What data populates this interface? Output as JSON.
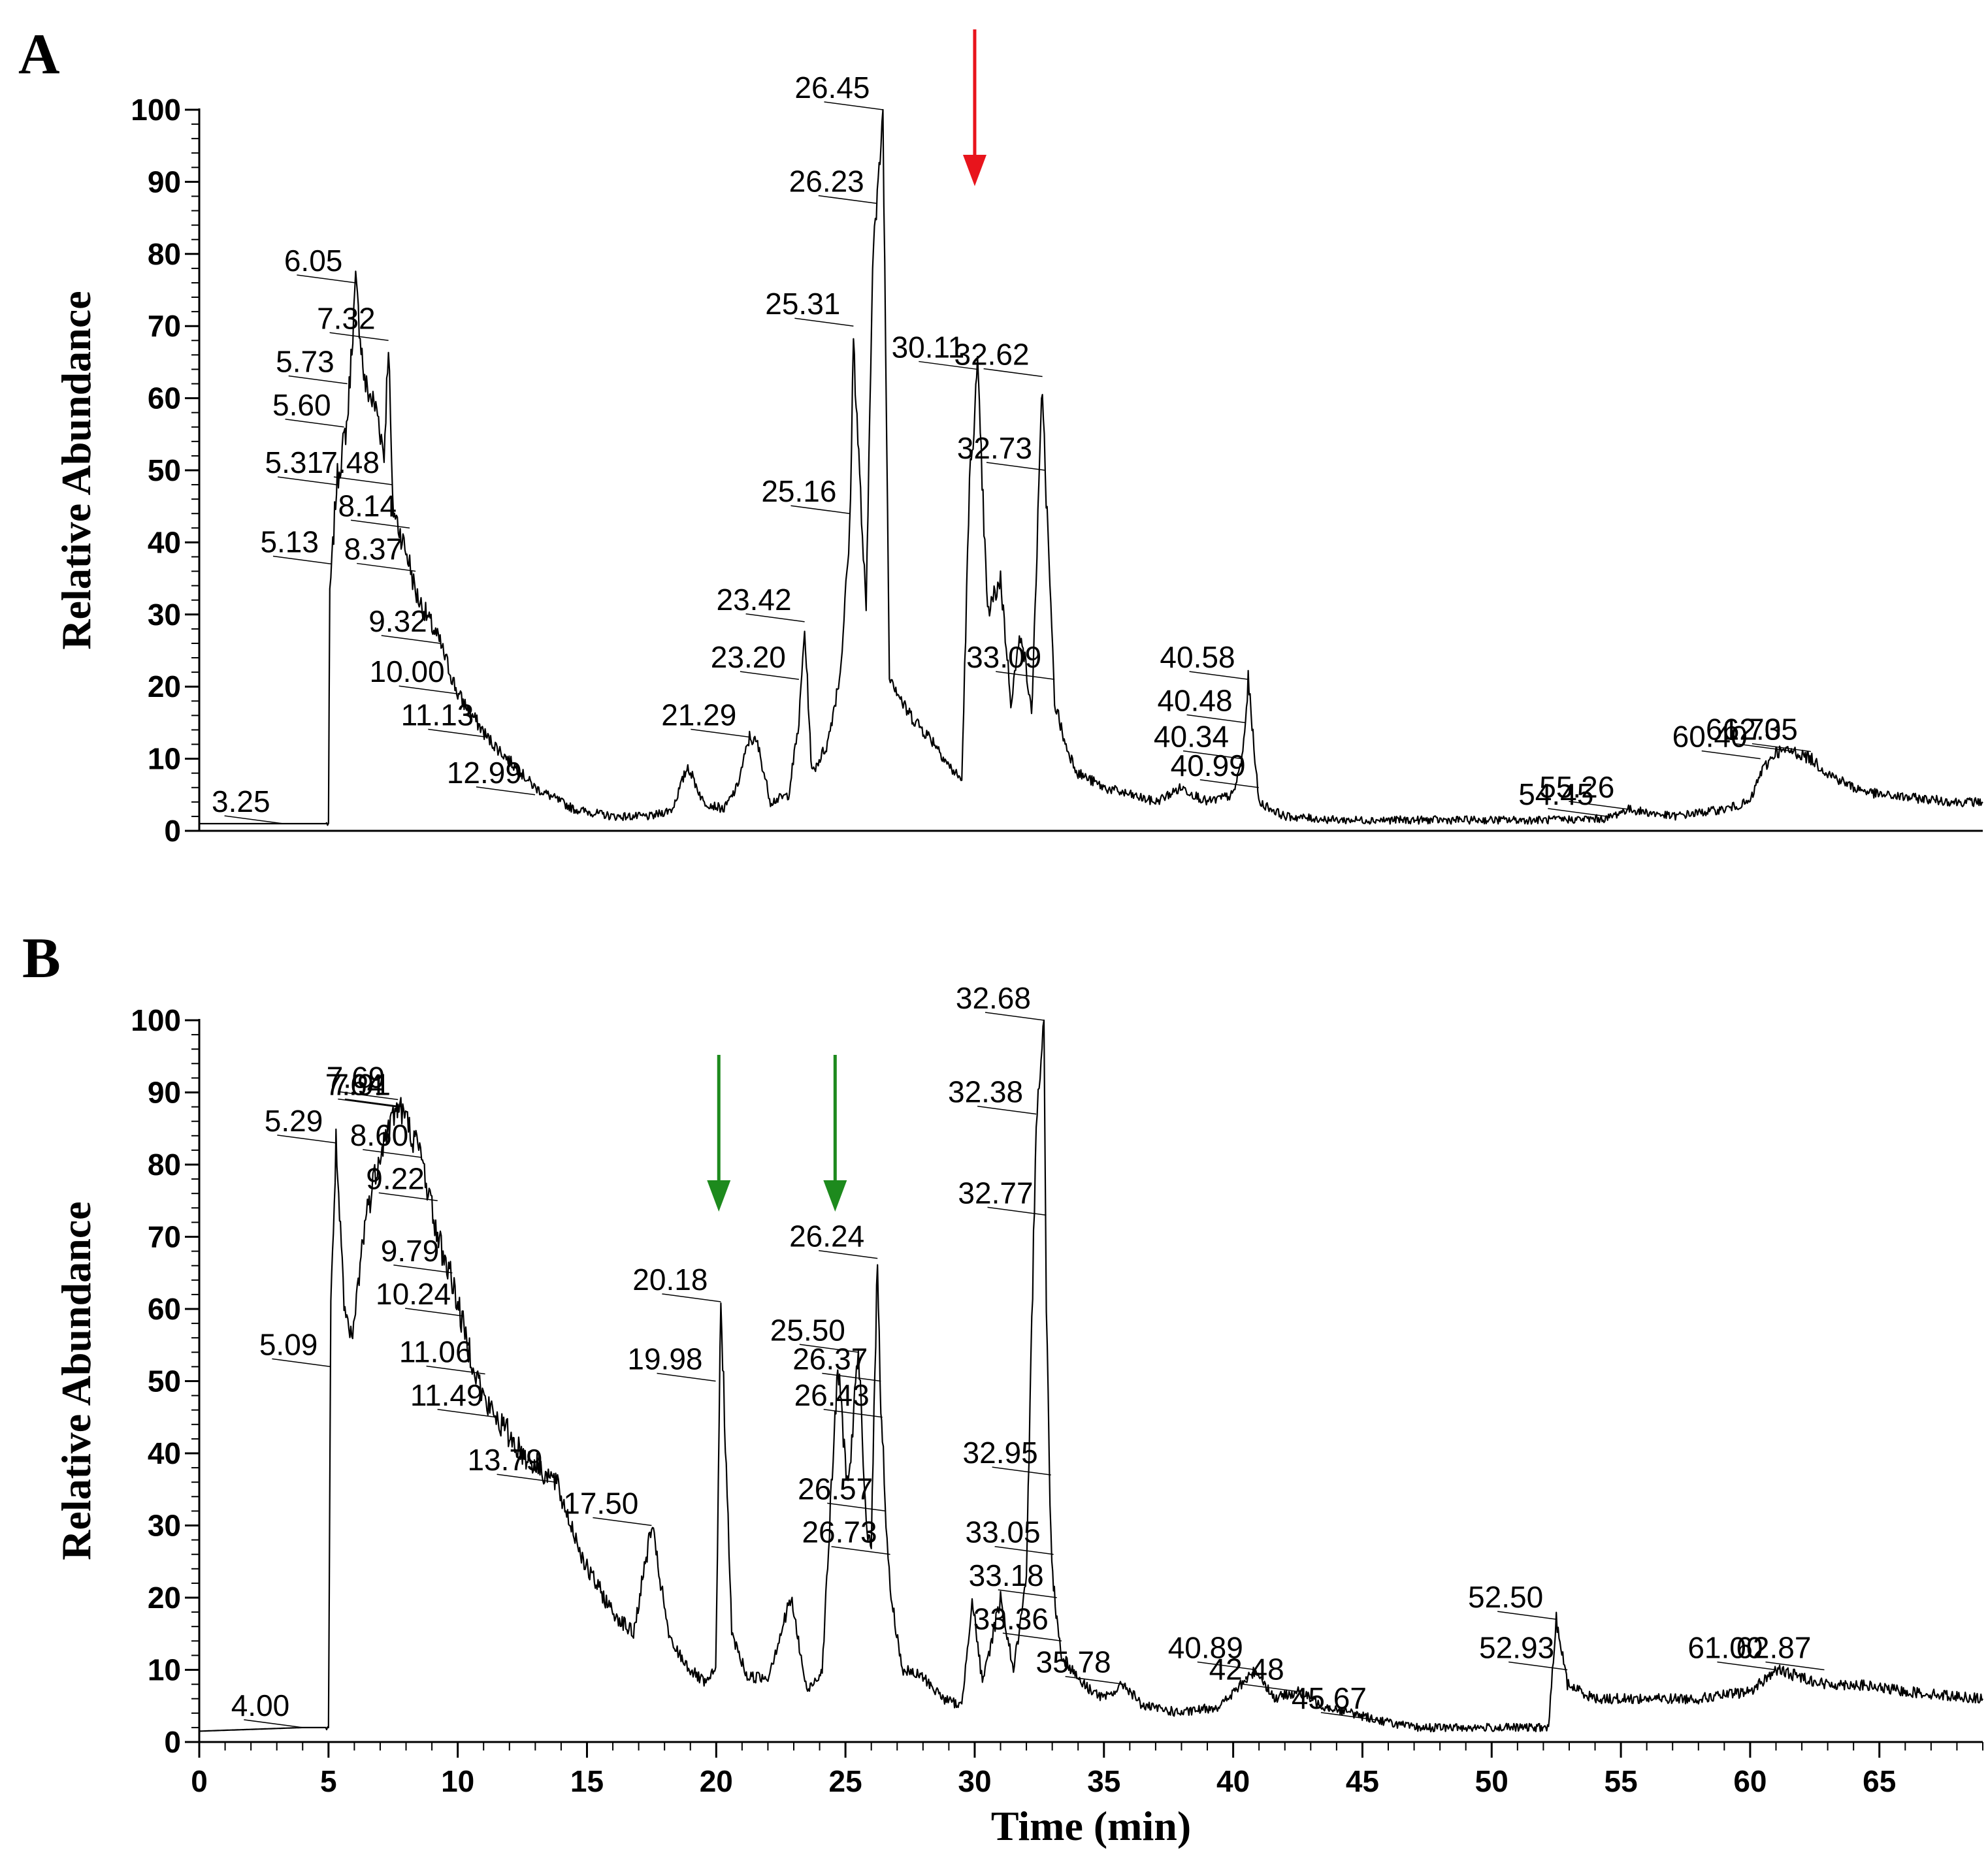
{
  "colors": {
    "trace": "#000000",
    "axis": "#000000",
    "arrow_red": "#e8141c",
    "arrow_green": "#1d8a1d"
  },
  "chart_data": [
    {
      "type": "line",
      "panel": "A",
      "xlabel": "",
      "ylabel": "Relative Abundance",
      "xlim": [
        0,
        69
      ],
      "ylim": [
        0,
        100
      ],
      "yticks": [
        0,
        10,
        20,
        30,
        40,
        50,
        60,
        70,
        80,
        90,
        100
      ],
      "xticks": [],
      "series": [
        {
          "name": "A",
          "x": [
            0,
            3.25,
            5.0,
            5.05,
            5.13,
            5.31,
            5.6,
            5.73,
            6.05,
            6.4,
            6.9,
            7.15,
            7.32,
            7.48,
            8.14,
            8.37,
            9.32,
            10.0,
            11.13,
            12.99,
            14.5,
            16.0,
            17.5,
            18.3,
            18.9,
            19.5,
            20.3,
            20.8,
            21.29,
            21.6,
            22.1,
            22.8,
            23.2,
            23.42,
            23.7,
            24.3,
            24.8,
            25.16,
            25.31,
            25.55,
            25.8,
            26.05,
            26.23,
            26.45,
            26.7,
            27.3,
            28.0,
            28.5,
            29.0,
            29.5,
            29.8,
            30.11,
            30.5,
            31.0,
            31.4,
            31.8,
            32.2,
            32.62,
            32.73,
            33.09,
            33.5,
            34.0,
            35.0,
            36.0,
            37.0,
            38.0,
            39.0,
            40.0,
            40.34,
            40.48,
            40.58,
            40.99,
            42.0,
            44.0,
            46.0,
            48.0,
            50.0,
            52.0,
            54.45,
            55.26,
            57.0,
            59.0,
            60.0,
            60.4,
            61.0,
            61.7,
            62.35,
            63.0,
            64.0,
            65.0,
            66.5,
            68.0,
            69.0
          ],
          "y": [
            1,
            1,
            1,
            33,
            37,
            48,
            54,
            57,
            76,
            62,
            58,
            52,
            68,
            45,
            37,
            33,
            26,
            19,
            13,
            6,
            3,
            2,
            2,
            3,
            9,
            4,
            3,
            6,
            13,
            12,
            4,
            5,
            15,
            28,
            8,
            12,
            22,
            41,
            68,
            49,
            30,
            80,
            87,
            100,
            22,
            17,
            14,
            12,
            9,
            7,
            48,
            64,
            30,
            35,
            18,
            28,
            16,
            62,
            50,
            18,
            12,
            8,
            6,
            5,
            4,
            6,
            4,
            5,
            10,
            15,
            21,
            4,
            2,
            1.5,
            1.5,
            1.5,
            1.5,
            1.5,
            1.7,
            3,
            2,
            3,
            4,
            8,
            11,
            11,
            10,
            8,
            6,
            5,
            4.5,
            4,
            4
          ]
        }
      ],
      "peak_labels": [
        {
          "text": "3.25",
          "x": 3.25,
          "y": 1
        },
        {
          "text": "5.13",
          "x": 5.13,
          "y": 37
        },
        {
          "text": "5.31",
          "x": 5.31,
          "y": 48
        },
        {
          "text": "5.60",
          "x": 5.6,
          "y": 56
        },
        {
          "text": "5.73",
          "x": 5.73,
          "y": 62
        },
        {
          "text": "6.05",
          "x": 6.05,
          "y": 76
        },
        {
          "text": "7.32",
          "x": 7.32,
          "y": 68
        },
        {
          "text": "7.48",
          "x": 7.48,
          "y": 48
        },
        {
          "text": "8.14",
          "x": 8.14,
          "y": 42
        },
        {
          "text": "8.37",
          "x": 8.37,
          "y": 36
        },
        {
          "text": "9.32",
          "x": 9.32,
          "y": 26
        },
        {
          "text": "10.00",
          "x": 10.0,
          "y": 19
        },
        {
          "text": "11.13",
          "x": 11.13,
          "y": 13
        },
        {
          "text": "12.99",
          "x": 12.99,
          "y": 5
        },
        {
          "text": "21.29",
          "x": 21.29,
          "y": 13
        },
        {
          "text": "23.20",
          "x": 23.2,
          "y": 21
        },
        {
          "text": "23.42",
          "x": 23.42,
          "y": 29
        },
        {
          "text": "25.16",
          "x": 25.16,
          "y": 44
        },
        {
          "text": "25.31",
          "x": 25.31,
          "y": 70
        },
        {
          "text": "26.23",
          "x": 26.23,
          "y": 87
        },
        {
          "text": "26.45",
          "x": 26.45,
          "y": 100
        },
        {
          "text": "30.11",
          "x": 30.11,
          "y": 64
        },
        {
          "text": "32.62",
          "x": 32.62,
          "y": 63
        },
        {
          "text": "32.73",
          "x": 32.73,
          "y": 50
        },
        {
          "text": "33.09",
          "x": 33.09,
          "y": 21
        },
        {
          "text": "40.34",
          "x": 40.34,
          "y": 10
        },
        {
          "text": "40.48",
          "x": 40.48,
          "y": 15
        },
        {
          "text": "40.58",
          "x": 40.58,
          "y": 21
        },
        {
          "text": "40.99",
          "x": 40.99,
          "y": 6
        },
        {
          "text": "54.45",
          "x": 54.45,
          "y": 2
        },
        {
          "text": "55.26",
          "x": 55.26,
          "y": 3
        },
        {
          "text": "60.40",
          "x": 60.4,
          "y": 10
        },
        {
          "text": "61.70",
          "x": 61.7,
          "y": 11
        },
        {
          "text": "62.35",
          "x": 62.35,
          "y": 11
        }
      ],
      "arrows": [
        {
          "x": 30.0,
          "color": "red"
        }
      ]
    },
    {
      "type": "line",
      "panel": "B",
      "xlabel": "Time (min)",
      "ylabel": "Relative Abundance",
      "xlim": [
        0,
        69
      ],
      "ylim": [
        0,
        100
      ],
      "yticks": [
        0,
        10,
        20,
        30,
        40,
        50,
        60,
        70,
        80,
        90,
        100
      ],
      "xticks": [
        0,
        5,
        10,
        15,
        20,
        25,
        30,
        35,
        40,
        45,
        50,
        55,
        60,
        65
      ],
      "series": [
        {
          "name": "B",
          "x": [
            0,
            4.0,
            5.0,
            5.09,
            5.29,
            5.6,
            5.9,
            6.4,
            7.0,
            7.64,
            7.69,
            7.91,
            8.6,
            9.22,
            9.79,
            10.24,
            11.06,
            11.49,
            12.5,
            13.79,
            15.0,
            16.0,
            16.8,
            17.5,
            18.2,
            19.0,
            19.6,
            19.98,
            20.18,
            20.6,
            21.2,
            22.0,
            22.9,
            23.5,
            24.1,
            24.7,
            25.1,
            25.5,
            25.8,
            26.0,
            26.24,
            26.37,
            26.43,
            26.57,
            26.73,
            27.2,
            28.0,
            28.8,
            29.5,
            29.9,
            30.3,
            31.0,
            31.5,
            32.0,
            32.38,
            32.68,
            32.77,
            32.95,
            33.05,
            33.18,
            33.36,
            34.2,
            35.0,
            35.78,
            36.5,
            38.0,
            39.5,
            40.89,
            41.6,
            42.48,
            43.5,
            45.67,
            47.0,
            49.0,
            51.0,
            52.2,
            52.5,
            52.93,
            54.0,
            56.0,
            58.0,
            60.0,
            61.0,
            62.0,
            62.87,
            64.0,
            66.0,
            69.0
          ],
          "y": [
            1.5,
            2,
            2,
            60,
            83,
            60,
            55,
            72,
            82,
            88,
            88,
            87,
            81,
            70,
            64,
            57,
            47,
            45,
            40,
            36,
            24,
            18,
            15,
            30,
            14,
            10,
            8,
            10,
            61,
            15,
            9,
            9,
            20,
            7,
            10,
            52,
            35,
            54,
            30,
            28,
            67,
            47,
            43,
            30,
            21,
            10,
            9,
            6,
            5,
            20,
            8,
            20,
            10,
            22,
            87,
            100,
            60,
            28,
            22,
            17,
            12,
            8,
            6,
            8,
            5,
            4,
            5,
            10,
            6,
            7,
            5,
            3,
            2,
            2,
            2,
            2,
            17,
            8,
            6,
            6,
            6,
            7,
            10,
            9,
            8,
            8,
            7,
            6
          ]
        }
      ],
      "peak_labels": [
        {
          "text": "4.00",
          "x": 4.0,
          "y": 2
        },
        {
          "text": "5.09",
          "x": 5.09,
          "y": 52
        },
        {
          "text": "5.29",
          "x": 5.29,
          "y": 83
        },
        {
          "text": "7.64",
          "x": 7.64,
          "y": 88
        },
        {
          "text": "7.69",
          "x": 7.69,
          "y": 89
        },
        {
          "text": "7.91",
          "x": 7.91,
          "y": 88
        },
        {
          "text": "8.60",
          "x": 8.6,
          "y": 81
        },
        {
          "text": "9.22",
          "x": 9.22,
          "y": 75
        },
        {
          "text": "9.79",
          "x": 9.79,
          "y": 65
        },
        {
          "text": "10.24",
          "x": 10.24,
          "y": 59
        },
        {
          "text": "11.06",
          "x": 11.06,
          "y": 51
        },
        {
          "text": "11.49",
          "x": 11.49,
          "y": 45
        },
        {
          "text": "13.79",
          "x": 13.79,
          "y": 36
        },
        {
          "text": "17.50",
          "x": 17.5,
          "y": 30
        },
        {
          "text": "19.98",
          "x": 19.98,
          "y": 50
        },
        {
          "text": "20.18",
          "x": 20.18,
          "y": 61
        },
        {
          "text": "25.50",
          "x": 25.5,
          "y": 54
        },
        {
          "text": "26.24",
          "x": 26.24,
          "y": 67
        },
        {
          "text": "26.37",
          "x": 26.37,
          "y": 50
        },
        {
          "text": "26.43",
          "x": 26.43,
          "y": 45
        },
        {
          "text": "26.57",
          "x": 26.57,
          "y": 32
        },
        {
          "text": "26.73",
          "x": 26.73,
          "y": 26
        },
        {
          "text": "32.38",
          "x": 32.38,
          "y": 87
        },
        {
          "text": "32.68",
          "x": 32.68,
          "y": 100
        },
        {
          "text": "32.77",
          "x": 32.77,
          "y": 73
        },
        {
          "text": "32.95",
          "x": 32.95,
          "y": 37
        },
        {
          "text": "33.05",
          "x": 33.05,
          "y": 26
        },
        {
          "text": "33.18",
          "x": 33.18,
          "y": 20
        },
        {
          "text": "33.36",
          "x": 33.36,
          "y": 14
        },
        {
          "text": "35.78",
          "x": 35.78,
          "y": 8
        },
        {
          "text": "40.89",
          "x": 40.89,
          "y": 10
        },
        {
          "text": "42.48",
          "x": 42.48,
          "y": 7
        },
        {
          "text": "45.67",
          "x": 45.67,
          "y": 3
        },
        {
          "text": "52.50",
          "x": 52.5,
          "y": 17
        },
        {
          "text": "52.93",
          "x": 52.93,
          "y": 10
        },
        {
          "text": "61.00",
          "x": 61.0,
          "y": 10
        },
        {
          "text": "62.87",
          "x": 62.87,
          "y": 10
        }
      ],
      "arrows": [
        {
          "x": 20.1,
          "color": "green"
        },
        {
          "x": 24.6,
          "color": "green"
        }
      ]
    }
  ]
}
